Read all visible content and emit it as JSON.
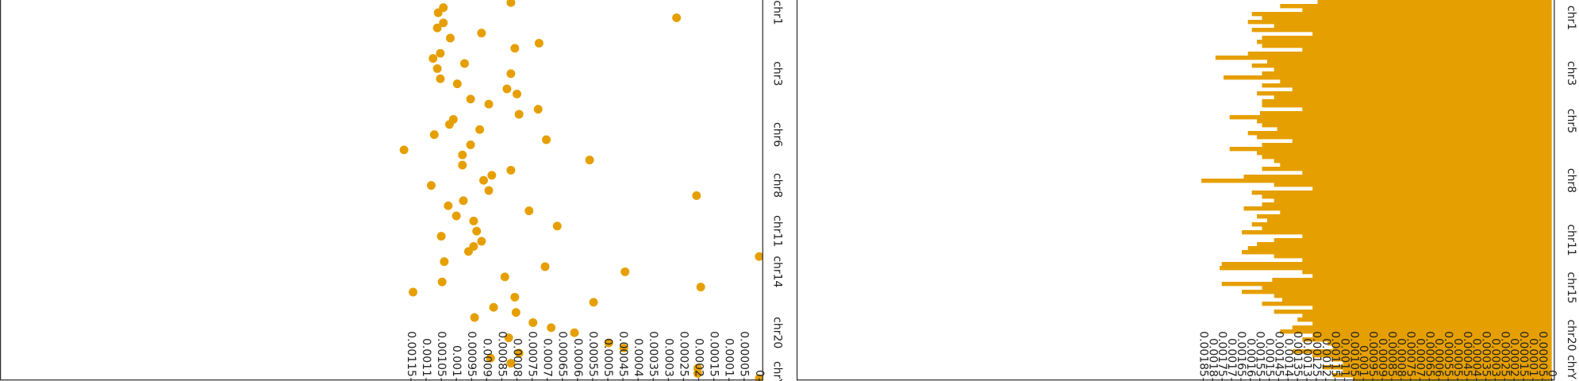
{
  "chart_data": [
    {
      "type": "scatter",
      "color": "#E69F00",
      "categories": [
        null,
        null,
        "chr1",
        null,
        null,
        null,
        null,
        null,
        null,
        null,
        null,
        null,
        null,
        null,
        "chr3",
        null,
        null,
        null,
        null,
        null,
        null,
        null,
        null,
        null,
        null,
        null,
        "chr6",
        null,
        null,
        null,
        null,
        null,
        null,
        null,
        null,
        null,
        "chr8",
        null,
        null,
        null,
        null,
        null,
        null,
        null,
        null,
        "chr11",
        null,
        null,
        null,
        null,
        null,
        null,
        null,
        "chr14",
        null,
        null,
        null,
        null,
        null,
        null,
        null,
        null,
        null,
        null,
        null,
        "chr20",
        null,
        null,
        null,
        null,
        null,
        null,
        null,
        "chrY",
        null
      ],
      "values": [
        0.00082,
        0.001043,
        0.00106,
        0.000273,
        0.001043,
        0.001063,
        0.000917,
        0.00102,
        0.000727,
        0.000807,
        0.001053,
        0.001077,
        0.000973,
        0.001063,
        0.00082,
        0.001053,
        0.000997,
        0.000833,
        0.0008,
        0.000953,
        0.000893,
        0.00073,
        0.000793,
        0.00101,
        0.001023,
        0.000923,
        0.001073,
        0.000703,
        0.000953,
        0.001173,
        0.00098,
        0.00056,
        0.00098,
        0.00082,
        0.000883,
        0.00091,
        0.001083,
        0.000893,
        0.000207,
        0.000977,
        0.001027,
        0.00076,
        0.001,
        0.000943,
        0.000667,
        0.000933,
        0.00105,
        0.000917,
        0.000943,
        0.00096,
        0,
        0.00104,
        0.000707,
        0.000443,
        0.00084,
        0.001047,
        0.000193,
        0.001143,
        0.000807,
        0.000547,
        0.000877,
        0.000803,
        0.00094,
        0.000747,
        0.000687,
        0.00061,
        0.000827,
        0.000497,
        0.000447,
        0.000793,
        0.000887,
        0.00082,
        0.000203,
        0.000203,
        0
      ],
      "ylim": [
        0,
        0.002507
      ],
      "yticks": [
        0,
        5e-05,
        0.0001,
        0.00015,
        0.0002,
        0.00025,
        0.0003,
        0.00035,
        0.0004,
        0.00045,
        0.0005,
        0.00055,
        0.0006,
        0.00065,
        0.0007,
        0.00075,
        0.0008,
        0.00085,
        0.0009,
        0.00095,
        0.001,
        0.00105,
        0.0011,
        0.00115
      ]
    },
    {
      "type": "bar",
      "color": "#E69F00",
      "categories": [
        null,
        null,
        null,
        null,
        "chr1",
        null,
        null,
        null,
        null,
        null,
        null,
        null,
        null,
        null,
        null,
        null,
        null,
        null,
        "chr3",
        null,
        null,
        null,
        null,
        null,
        null,
        null,
        null,
        null,
        null,
        null,
        "chr5",
        null,
        null,
        null,
        null,
        null,
        null,
        null,
        null,
        null,
        null,
        null,
        null,
        null,
        null,
        "chr8",
        null,
        null,
        null,
        null,
        null,
        null,
        null,
        null,
        null,
        null,
        null,
        null,
        null,
        null,
        "chr11",
        null,
        null,
        null,
        null,
        null,
        null,
        null,
        null,
        null,
        null,
        null,
        "chr15",
        null,
        null,
        null,
        null,
        null,
        null,
        null,
        null,
        null,
        null,
        null,
        "chr20",
        null,
        null,
        null,
        null,
        null,
        null,
        null,
        "chrY",
        null,
        null,
        null
      ],
      "values": [
        0.001243,
        0.001442,
        0.001324,
        0.001592,
        0.001538,
        0.001613,
        0.001474,
        0.001592,
        0.00127,
        0.001538,
        0.001565,
        0.001538,
        0.001324,
        0.001613,
        0.001785,
        0.001511,
        0.001592,
        0.001474,
        0.001538,
        0.001742,
        0.001442,
        0.001538,
        0.001377,
        0.001565,
        0.001474,
        0.001538,
        0.001538,
        0.001324,
        0.001549,
        0.00171,
        0.001565,
        0.001538,
        0.001458,
        0.001613,
        0.001565,
        0.001377,
        0.001538,
        0.00171,
        0.001565,
        0.001538,
        0.001474,
        0.001442,
        0.001538,
        0.001324,
        0.001635,
        0.00186,
        0.001474,
        0.00127,
        0.001592,
        0.001538,
        0.001474,
        0.001538,
        0.001635,
        0.001442,
        0.001565,
        0.001511,
        0.001592,
        0.001538,
        0.001645,
        0.001324,
        0.001474,
        0.001565,
        0.001613,
        0.001645,
        0.001474,
        0.001324,
        0.001752,
        0.001763,
        0.001324,
        0.00127,
        0.001484,
        0.001752,
        0.001538,
        0.001645,
        0.001474,
        0.001431,
        0.001538,
        0.00127,
        0.001474,
        0.001324,
        0.00135,
        0.00127,
        0.001377,
        0.001442,
        0.00127,
        0.001324,
        0.00119,
        0.001163,
        0.001377,
        0.00127,
        0.001163,
        0.001109,
        0.001217,
        0.001109,
        0.001163,
        0.001056
      ],
      "ylim": [
        0,
        0.004009
      ],
      "yticks": [
        0,
        5e-05,
        0.0001,
        0.00015,
        0.0002,
        0.00025,
        0.0003,
        0.00035,
        0.0004,
        0.00045,
        0.0005,
        0.00055,
        0.0006,
        0.00065,
        0.0007,
        0.00075,
        0.0008,
        0.00085,
        0.0009,
        0.00095,
        0.001,
        0.00105,
        0.0011,
        0.00115,
        0.0012,
        0.00125,
        0.0013,
        0.00135,
        0.0014,
        0.00145,
        0.0015,
        0.00155,
        0.0016,
        0.00165,
        0.0017,
        0.00175,
        0.0018,
        0.00185
      ]
    }
  ]
}
